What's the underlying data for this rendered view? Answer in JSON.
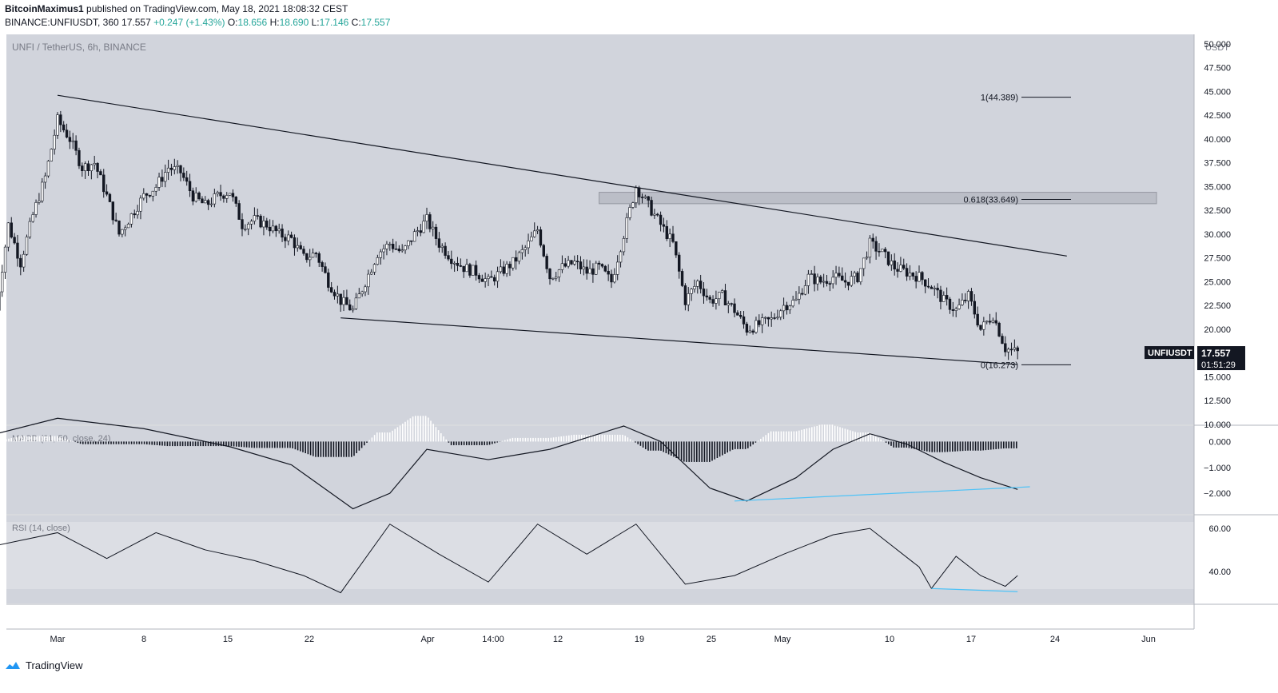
{
  "header": {
    "author": "BitcoinMaximus1",
    "published": "published on TradingView.com, May 18, 2021 18:08:32 CEST",
    "symbol_line": "BINANCE:UNFIUSDT, 360",
    "last": "17.557",
    "change": "+0.247 (+1.43%)",
    "o_label": "O:",
    "o": "18.656",
    "h_label": "H:",
    "h": "18.690",
    "l_label": "L:",
    "l": "17.146",
    "c_label": "C:",
    "c": "17.557"
  },
  "chart_data": {
    "type": "candlestick",
    "title": "UNFI / TetherUS, 6h, BINANCE",
    "x_tick_labels": [
      "Mar",
      "8",
      "15",
      "22",
      "Apr",
      "14:00",
      "12",
      "19",
      "25",
      "May",
      "10",
      "17",
      "24",
      "Jun"
    ],
    "price_axis": {
      "unit": "USDT",
      "ylim": [
        10,
        51
      ],
      "tick_labels": [
        "50.000",
        "47.500",
        "45.000",
        "42.500",
        "40.000",
        "37.500",
        "35.000",
        "32.500",
        "30.000",
        "27.500",
        "25.000",
        "22.500",
        "20.000",
        "17.500",
        "15.000",
        "12.500",
        "10.000"
      ]
    },
    "fibonacci": [
      {
        "label": "1(44.389)",
        "value": 44.389
      },
      {
        "label": "0.618(33.649)",
        "value": 33.649
      },
      {
        "label": "0(16.273)",
        "value": 16.273
      }
    ],
    "resistance_zone": [
      33.2,
      34.4
    ],
    "trendlines": [
      {
        "name": "descending-resistance",
        "from": {
          "date": "2021-03-01",
          "value": 44.6
        },
        "to": {
          "date": "2021-05-22",
          "value": 27.7
        }
      },
      {
        "name": "descending-support",
        "from": {
          "date": "2021-03-24",
          "value": 21.2
        },
        "to": {
          "date": "2021-05-18",
          "value": 16.3
        }
      }
    ],
    "price_series": [
      {
        "date": "2021-02-24",
        "value": 22
      },
      {
        "date": "2021-02-25",
        "value": 31
      },
      {
        "date": "2021-02-26",
        "value": 27
      },
      {
        "date": "2021-02-27",
        "value": 32
      },
      {
        "date": "2021-02-28",
        "value": 36
      },
      {
        "date": "2021-03-01",
        "value": 42
      },
      {
        "date": "2021-03-02",
        "value": 40
      },
      {
        "date": "2021-03-03",
        "value": 37
      },
      {
        "date": "2021-03-04",
        "value": 37.5
      },
      {
        "date": "2021-03-05",
        "value": 34
      },
      {
        "date": "2021-03-06",
        "value": 30
      },
      {
        "date": "2021-03-07",
        "value": 32
      },
      {
        "date": "2021-03-08",
        "value": 34
      },
      {
        "date": "2021-03-09",
        "value": 35
      },
      {
        "date": "2021-03-10",
        "value": 37
      },
      {
        "date": "2021-03-11",
        "value": 36.5
      },
      {
        "date": "2021-03-12",
        "value": 34
      },
      {
        "date": "2021-03-13",
        "value": 33
      },
      {
        "date": "2021-03-14",
        "value": 34
      },
      {
        "date": "2021-03-15",
        "value": 34.5
      },
      {
        "date": "2021-03-16",
        "value": 31
      },
      {
        "date": "2021-03-17",
        "value": 31.5
      },
      {
        "date": "2021-03-18",
        "value": 31
      },
      {
        "date": "2021-03-19",
        "value": 30
      },
      {
        "date": "2021-03-20",
        "value": 29.5
      },
      {
        "date": "2021-03-21",
        "value": 27.5
      },
      {
        "date": "2021-03-22",
        "value": 28
      },
      {
        "date": "2021-03-23",
        "value": 25
      },
      {
        "date": "2021-03-24",
        "value": 23
      },
      {
        "date": "2021-03-25",
        "value": 22
      },
      {
        "date": "2021-03-26",
        "value": 25
      },
      {
        "date": "2021-03-27",
        "value": 28
      },
      {
        "date": "2021-03-28",
        "value": 29
      },
      {
        "date": "2021-03-29",
        "value": 28
      },
      {
        "date": "2021-03-30",
        "value": 30
      },
      {
        "date": "2021-03-31",
        "value": 31.5
      },
      {
        "date": "2021-04-01",
        "value": 29
      },
      {
        "date": "2021-04-02",
        "value": 27.5
      },
      {
        "date": "2021-04-03",
        "value": 26.5
      },
      {
        "date": "2021-04-04",
        "value": 26
      },
      {
        "date": "2021-04-05",
        "value": 25
      },
      {
        "date": "2021-04-06",
        "value": 26
      },
      {
        "date": "2021-04-07",
        "value": 27
      },
      {
        "date": "2021-04-08",
        "value": 28.5
      },
      {
        "date": "2021-04-09",
        "value": 30.5
      },
      {
        "date": "2021-04-10",
        "value": 25.5
      },
      {
        "date": "2021-04-11",
        "value": 26.5
      },
      {
        "date": "2021-04-12",
        "value": 27
      },
      {
        "date": "2021-04-13",
        "value": 26
      },
      {
        "date": "2021-04-14",
        "value": 26.5
      },
      {
        "date": "2021-04-15",
        "value": 25
      },
      {
        "date": "2021-04-16",
        "value": 30
      },
      {
        "date": "2021-04-17",
        "value": 35
      },
      {
        "date": "2021-04-18",
        "value": 33
      },
      {
        "date": "2021-04-19",
        "value": 31
      },
      {
        "date": "2021-04-20",
        "value": 29
      },
      {
        "date": "2021-04-21",
        "value": 23
      },
      {
        "date": "2021-04-22",
        "value": 25
      },
      {
        "date": "2021-04-23",
        "value": 23
      },
      {
        "date": "2021-04-24",
        "value": 23.5
      },
      {
        "date": "2021-04-25",
        "value": 22
      },
      {
        "date": "2021-04-26",
        "value": 20
      },
      {
        "date": "2021-04-27",
        "value": 20.5
      },
      {
        "date": "2021-04-28",
        "value": 21
      },
      {
        "date": "2021-04-29",
        "value": 22.5
      },
      {
        "date": "2021-04-30",
        "value": 23
      },
      {
        "date": "2021-05-01",
        "value": 25.5
      },
      {
        "date": "2021-05-02",
        "value": 25
      },
      {
        "date": "2021-05-03",
        "value": 25.5
      },
      {
        "date": "2021-05-04",
        "value": 25
      },
      {
        "date": "2021-05-05",
        "value": 25.5
      },
      {
        "date": "2021-05-06",
        "value": 29
      },
      {
        "date": "2021-05-07",
        "value": 28
      },
      {
        "date": "2021-05-08",
        "value": 26.5
      },
      {
        "date": "2021-05-09",
        "value": 26
      },
      {
        "date": "2021-05-10",
        "value": 25.5
      },
      {
        "date": "2021-05-11",
        "value": 24.5
      },
      {
        "date": "2021-05-12",
        "value": 23
      },
      {
        "date": "2021-05-13",
        "value": 22
      },
      {
        "date": "2021-05-14",
        "value": 23.5
      },
      {
        "date": "2021-05-15",
        "value": 20
      },
      {
        "date": "2021-05-16",
        "value": 21.5
      },
      {
        "date": "2021-05-17",
        "value": 18
      },
      {
        "date": "2021-05-18",
        "value": 17.557
      }
    ],
    "last_price": {
      "symbol": "UNFIUSDT",
      "value": "17.557",
      "countdown": "01:51:29"
    },
    "macd": {
      "label": "MACD (21, 50, close, 24)",
      "tick_labels": [
        "0.000",
        "−1.000",
        "−2.000"
      ],
      "ylim": [
        -2.8,
        0.6
      ],
      "line": [
        {
          "date": "2021-02-24",
          "value": 0.3
        },
        {
          "date": "2021-03-01",
          "value": 0.9
        },
        {
          "date": "2021-03-08",
          "value": 0.5
        },
        {
          "date": "2021-03-15",
          "value": -0.2
        },
        {
          "date": "2021-03-20",
          "value": -0.9
        },
        {
          "date": "2021-03-25",
          "value": -2.6
        },
        {
          "date": "2021-03-28",
          "value": -2.0
        },
        {
          "date": "2021-03-31",
          "value": -0.3
        },
        {
          "date": "2021-04-05",
          "value": -0.7
        },
        {
          "date": "2021-04-10",
          "value": -0.3
        },
        {
          "date": "2021-04-16",
          "value": 0.6
        },
        {
          "date": "2021-04-19",
          "value": 0.0
        },
        {
          "date": "2021-04-23",
          "value": -1.8
        },
        {
          "date": "2021-04-26",
          "value": -2.3
        },
        {
          "date": "2021-04-30",
          "value": -1.4
        },
        {
          "date": "2021-05-03",
          "value": -0.3
        },
        {
          "date": "2021-05-06",
          "value": 0.3
        },
        {
          "date": "2021-05-09",
          "value": -0.1
        },
        {
          "date": "2021-05-12",
          "value": -0.8
        },
        {
          "date": "2021-05-15",
          "value": -1.4
        },
        {
          "date": "2021-05-18",
          "value": -1.85
        }
      ]
    },
    "rsi": {
      "label": "RSI (14, close)",
      "tick_labels": [
        "60.00",
        "40.00"
      ],
      "ylim": [
        25,
        66
      ],
      "line": [
        {
          "date": "2021-02-24",
          "value": 52
        },
        {
          "date": "2021-03-01",
          "value": 58
        },
        {
          "date": "2021-03-05",
          "value": 46
        },
        {
          "date": "2021-03-09",
          "value": 58
        },
        {
          "date": "2021-03-13",
          "value": 50
        },
        {
          "date": "2021-03-17",
          "value": 45
        },
        {
          "date": "2021-03-21",
          "value": 38
        },
        {
          "date": "2021-03-24",
          "value": 30
        },
        {
          "date": "2021-03-28",
          "value": 62
        },
        {
          "date": "2021-04-01",
          "value": 48
        },
        {
          "date": "2021-04-05",
          "value": 35
        },
        {
          "date": "2021-04-09",
          "value": 62
        },
        {
          "date": "2021-04-13",
          "value": 48
        },
        {
          "date": "2021-04-17",
          "value": 62
        },
        {
          "date": "2021-04-21",
          "value": 34
        },
        {
          "date": "2021-04-25",
          "value": 38
        },
        {
          "date": "2021-04-29",
          "value": 48
        },
        {
          "date": "2021-05-03",
          "value": 57
        },
        {
          "date": "2021-05-06",
          "value": 60
        },
        {
          "date": "2021-05-10",
          "value": 42
        },
        {
          "date": "2021-05-11",
          "value": 32
        },
        {
          "date": "2021-05-13",
          "value": 47
        },
        {
          "date": "2021-05-15",
          "value": 38
        },
        {
          "date": "2021-05-17",
          "value": 33
        },
        {
          "date": "2021-05-18",
          "value": 38
        }
      ]
    }
  },
  "footer": {
    "brand": "TradingView"
  }
}
